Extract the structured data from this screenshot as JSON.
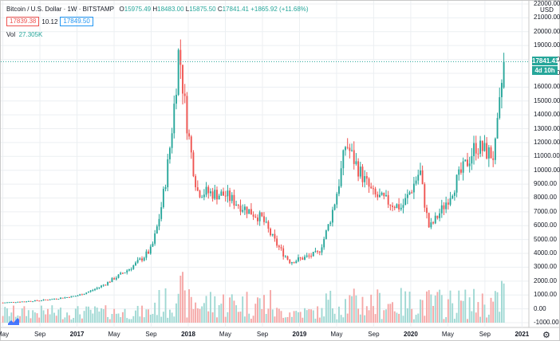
{
  "header": {
    "symbol": "Bitcoin / U.S. Dollar · 1W · BITSTAMP",
    "ohlc": {
      "o_label": "O",
      "o": "15975.49",
      "h_label": "H",
      "h": "18483.00",
      "l_label": "L",
      "l": "15875.50",
      "c_label": "C",
      "c": "17841.41",
      "change": "+1865.92 (+11.68%)"
    }
  },
  "quote": {
    "bid": "17839.38",
    "spread": "10.12",
    "ask": "17849.50"
  },
  "volume": {
    "label": "Vol",
    "value": "27.305K"
  },
  "y_axis": {
    "unit": "USD",
    "ticks": [
      "22000.00",
      "21000.00",
      "20000.00",
      "19000.00",
      "18000.00",
      "17000.00",
      "16000.00",
      "15000.00",
      "14000.00",
      "13000.00",
      "12000.00",
      "11000.00",
      "10000.00",
      "9000.00",
      "8000.00",
      "7000.00",
      "6000.00",
      "5000.00",
      "4000.00",
      "3000.00",
      "2000.00",
      "1000.00",
      "0.00",
      "-1000.00"
    ]
  },
  "last_price_label": "17841.41",
  "countdown_label": "4d 10h",
  "x_axis": {
    "ticks": [
      {
        "label": "May",
        "bold": false
      },
      {
        "label": "Sep",
        "bold": false
      },
      {
        "label": "2017",
        "bold": true
      },
      {
        "label": "May",
        "bold": false
      },
      {
        "label": "Sep",
        "bold": false
      },
      {
        "label": "2018",
        "bold": true
      },
      {
        "label": "May",
        "bold": false
      },
      {
        "label": "Sep",
        "bold": false
      },
      {
        "label": "2019",
        "bold": true
      },
      {
        "label": "May",
        "bold": false
      },
      {
        "label": "Sep",
        "bold": false
      },
      {
        "label": "2020",
        "bold": true
      },
      {
        "label": "May",
        "bold": false
      },
      {
        "label": "Sep",
        "bold": false
      },
      {
        "label": "2021",
        "bold": true
      }
    ]
  },
  "colors": {
    "up": "#26a69a",
    "down": "#ef5350",
    "vol_up": "#9fd8d3",
    "vol_down": "#f5a7a6",
    "grid": "#eceff2",
    "price_line": "#26a69a"
  },
  "icons": {
    "settings": "gear-icon",
    "logo": "tradingview-logo-icon"
  },
  "chart_data": {
    "type": "candlestick",
    "timeframe": "1W",
    "x_range": [
      "2016-05",
      "2020-11"
    ],
    "ylim": [
      -1000,
      22000
    ],
    "keypoints": [
      {
        "date": "2016-05",
        "close": 450
      },
      {
        "date": "2016-09",
        "close": 610
      },
      {
        "date": "2017-01",
        "close": 950
      },
      {
        "date": "2017-05",
        "close": 2200
      },
      {
        "date": "2017-09",
        "close": 4300
      },
      {
        "date": "2017-12",
        "close": 19000
      },
      {
        "date": "2018-02",
        "close": 8500
      },
      {
        "date": "2018-05",
        "close": 8200
      },
      {
        "date": "2018-09",
        "close": 6500
      },
      {
        "date": "2018-12",
        "close": 3400
      },
      {
        "date": "2019-03",
        "close": 4000
      },
      {
        "date": "2019-06",
        "close": 12000
      },
      {
        "date": "2019-09",
        "close": 8200
      },
      {
        "date": "2019-12",
        "close": 7300
      },
      {
        "date": "2020-02",
        "close": 10000
      },
      {
        "date": "2020-03",
        "close": 5800
      },
      {
        "date": "2020-06",
        "close": 9300
      },
      {
        "date": "2020-08",
        "close": 11800
      },
      {
        "date": "2020-10",
        "close": 11000
      },
      {
        "date": "2020-11",
        "close": 17841.41
      }
    ],
    "last": {
      "open": 15975.49,
      "high": 18483.0,
      "low": 15875.5,
      "close": 17841.41
    },
    "volume_last": "27.305K"
  }
}
